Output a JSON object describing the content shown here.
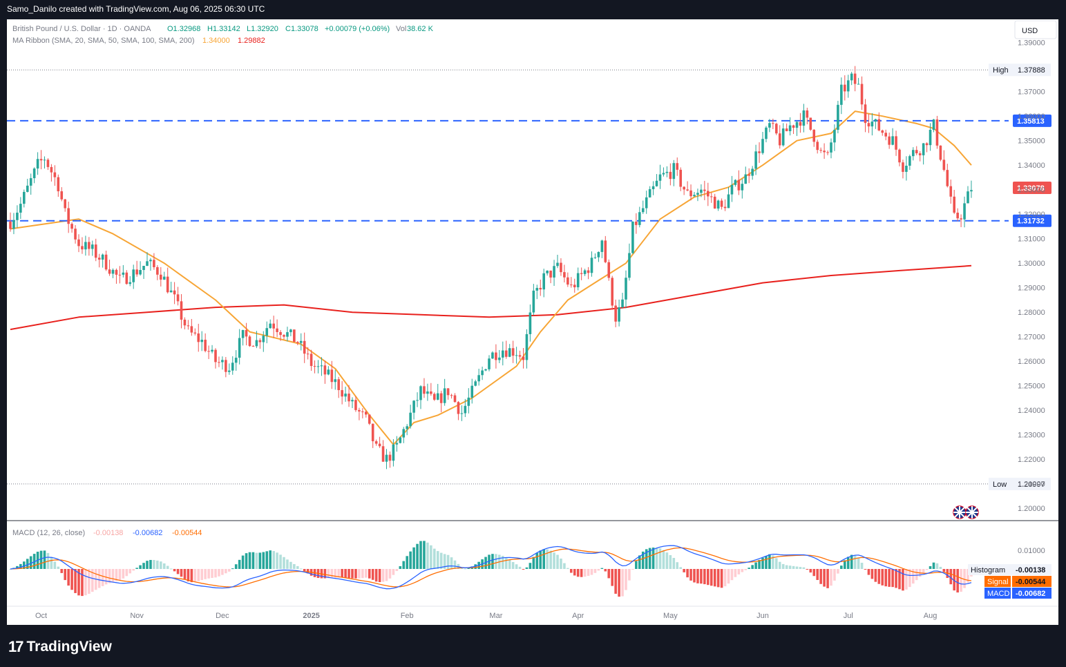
{
  "header": {
    "credit": "Samo_Danilo created with TradingView.com, Aug 06, 2025 06:30 UTC"
  },
  "legend": {
    "symbol": "British Pound / U.S. Dollar · 1D · OANDA",
    "open": "O1.32968",
    "high": "H1.33142",
    "low": "L1.32920",
    "close": "C1.33078",
    "change": "+0.00079 (+0.06%)",
    "vol_label": "Vol",
    "vol_value": "38.62 K",
    "ma_title": "MA Ribbon (SMA, 20, SMA, 50, SMA, 100, SMA, 200)",
    "ma_val1": "1.34000",
    "ma_val2": "1.29882"
  },
  "currency_button": "USD",
  "flags_icon": "uk-us-flags-icon",
  "brand": {
    "logo": "17",
    "name": "TradingView"
  },
  "macd_legend": {
    "title": "MACD (12, 26, close)",
    "hist": "-0.00138",
    "macd": "-0.00682",
    "signal": "-0.00544"
  },
  "colors": {
    "up": "#26a69a",
    "down": "#ef5350",
    "level": "#2962ff",
    "sma_fast": "#f7a535",
    "sma_slow": "#e8201c",
    "macd": "#2962ff",
    "signal": "#ff6d00"
  },
  "chart_data": {
    "type": "candlestick",
    "y_range": [
      1.195,
      1.3995
    ],
    "y_ticks": [
      "1.20000",
      "1.21000",
      "1.22000",
      "1.23000",
      "1.24000",
      "1.25000",
      "1.26000",
      "1.27000",
      "1.28000",
      "1.29000",
      "1.30000",
      "1.31000",
      "1.32000",
      "1.33000",
      "1.34000",
      "1.35000",
      "1.36000",
      "1.37000",
      "1.39000"
    ],
    "x_labels": [
      "Oct",
      "Nov",
      "Dec",
      "2025",
      "Feb",
      "Mar",
      "Apr",
      "May",
      "Jun",
      "Jul",
      "Aug"
    ],
    "high": {
      "label": "High",
      "value": "1.37888",
      "y": 1.37888
    },
    "low": {
      "label": "Low",
      "value": "1.20997",
      "y": 1.20997
    },
    "levels": [
      {
        "value": "1.35813",
        "y": 1.35813
      },
      {
        "value": "1.31732",
        "y": 1.31732
      }
    ],
    "last_price": {
      "value": "1.33078",
      "y": 1.33078
    },
    "anchors": [
      [
        0,
        1.317
      ],
      [
        3,
        1.324
      ],
      [
        8,
        1.34
      ],
      [
        10,
        1.343
      ],
      [
        14,
        1.332
      ],
      [
        16,
        1.32
      ],
      [
        20,
        1.308
      ],
      [
        24,
        1.305
      ],
      [
        28,
        1.3
      ],
      [
        32,
        1.293
      ],
      [
        36,
        1.296
      ],
      [
        40,
        1.3
      ],
      [
        44,
        1.296
      ],
      [
        48,
        1.285
      ],
      [
        52,
        1.272
      ],
      [
        56,
        1.268
      ],
      [
        60,
        1.26
      ],
      [
        64,
        1.258
      ],
      [
        68,
        1.27
      ],
      [
        72,
        1.268
      ],
      [
        76,
        1.276
      ],
      [
        80,
        1.272
      ],
      [
        84,
        1.268
      ],
      [
        88,
        1.259
      ],
      [
        92,
        1.255
      ],
      [
        96,
        1.25
      ],
      [
        100,
        1.242
      ],
      [
        104,
        1.236
      ],
      [
        107,
        1.224
      ],
      [
        110,
        1.22
      ],
      [
        113,
        1.225
      ],
      [
        116,
        1.235
      ],
      [
        120,
        1.248
      ],
      [
        124,
        1.243
      ],
      [
        128,
        1.248
      ],
      [
        132,
        1.239
      ],
      [
        136,
        1.25
      ],
      [
        140,
        1.262
      ],
      [
        144,
        1.265
      ],
      [
        148,
        1.264
      ],
      [
        150,
        1.262
      ],
      [
        153,
        1.286
      ],
      [
        156,
        1.294
      ],
      [
        160,
        1.298
      ],
      [
        164,
        1.29
      ],
      [
        167,
        1.295
      ],
      [
        170,
        1.3
      ],
      [
        173,
        1.31
      ],
      [
        175,
        1.292
      ],
      [
        177,
        1.278
      ],
      [
        179,
        1.283
      ],
      [
        182,
        1.314
      ],
      [
        186,
        1.325
      ],
      [
        190,
        1.335
      ],
      [
        194,
        1.338
      ],
      [
        198,
        1.328
      ],
      [
        202,
        1.33
      ],
      [
        206,
        1.325
      ],
      [
        208,
        1.322
      ],
      [
        211,
        1.33
      ],
      [
        215,
        1.335
      ],
      [
        218,
        1.344
      ],
      [
        222,
        1.356
      ],
      [
        225,
        1.35
      ],
      [
        228,
        1.356
      ],
      [
        232,
        1.36
      ],
      [
        235,
        1.352
      ],
      [
        237,
        1.345
      ],
      [
        239,
        1.343
      ],
      [
        241,
        1.355
      ],
      [
        243,
        1.37
      ],
      [
        246,
        1.375
      ],
      [
        248,
        1.372
      ],
      [
        250,
        1.36
      ],
      [
        254,
        1.355
      ],
      [
        258,
        1.35
      ],
      [
        261,
        1.34
      ],
      [
        264,
        1.345
      ],
      [
        267,
        1.348
      ],
      [
        270,
        1.356
      ],
      [
        273,
        1.338
      ],
      [
        276,
        1.318
      ],
      [
        278,
        1.32
      ],
      [
        281,
        1.3308
      ]
    ],
    "sma20": [
      [
        0,
        1.314
      ],
      [
        20,
        1.318
      ],
      [
        30,
        1.312
      ],
      [
        45,
        1.3
      ],
      [
        60,
        1.285
      ],
      [
        70,
        1.272
      ],
      [
        85,
        1.267
      ],
      [
        95,
        1.257
      ],
      [
        105,
        1.238
      ],
      [
        112,
        1.226
      ],
      [
        118,
        1.235
      ],
      [
        125,
        1.238
      ],
      [
        135,
        1.245
      ],
      [
        148,
        1.258
      ],
      [
        155,
        1.272
      ],
      [
        163,
        1.285
      ],
      [
        172,
        1.293
      ],
      [
        180,
        1.3
      ],
      [
        190,
        1.318
      ],
      [
        200,
        1.327
      ],
      [
        210,
        1.331
      ],
      [
        220,
        1.34
      ],
      [
        230,
        1.35
      ],
      [
        240,
        1.353
      ],
      [
        247,
        1.362
      ],
      [
        255,
        1.36
      ],
      [
        265,
        1.357
      ],
      [
        270,
        1.355
      ],
      [
        276,
        1.348
      ],
      [
        281,
        1.34
      ]
    ],
    "sma200": [
      [
        0,
        1.273
      ],
      [
        20,
        1.278
      ],
      [
        40,
        1.28
      ],
      [
        60,
        1.282
      ],
      [
        80,
        1.283
      ],
      [
        100,
        1.28
      ],
      [
        120,
        1.279
      ],
      [
        140,
        1.278
      ],
      [
        160,
        1.279
      ],
      [
        180,
        1.282
      ],
      [
        200,
        1.287
      ],
      [
        220,
        1.292
      ],
      [
        240,
        1.295
      ],
      [
        260,
        1.297
      ],
      [
        281,
        1.299
      ]
    ],
    "macd": {
      "zero_tick": "0.01000",
      "histogram": {
        "label": "Histogram",
        "value": "-0.00138"
      },
      "signal": {
        "label": "Signal",
        "value": "-0.00544"
      },
      "macd_line": {
        "label": "MACD",
        "value": "-0.00682"
      }
    }
  }
}
